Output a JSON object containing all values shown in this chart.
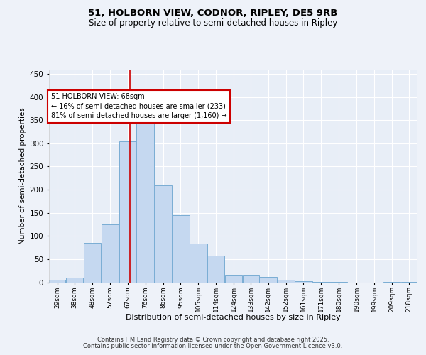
{
  "title1": "51, HOLBORN VIEW, CODNOR, RIPLEY, DE5 9RB",
  "title2": "Size of property relative to semi-detached houses in Ripley",
  "xlabel": "Distribution of semi-detached houses by size in Ripley",
  "ylabel": "Number of semi-detached properties",
  "bin_labels": [
    "29sqm",
    "38sqm",
    "48sqm",
    "57sqm",
    "67sqm",
    "76sqm",
    "86sqm",
    "95sqm",
    "105sqm",
    "114sqm",
    "124sqm",
    "133sqm",
    "142sqm",
    "152sqm",
    "161sqm",
    "171sqm",
    "180sqm",
    "190sqm",
    "199sqm",
    "209sqm",
    "218sqm"
  ],
  "bin_edges": [
    24.5,
    33.5,
    43,
    52.5,
    62,
    71.5,
    81,
    90.5,
    100,
    109.5,
    119,
    128.5,
    137.5,
    147,
    156.5,
    166,
    175.5,
    185,
    194.5,
    204,
    213.5,
    222.5
  ],
  "values": [
    5,
    10,
    85,
    125,
    305,
    350,
    210,
    145,
    83,
    58,
    15,
    15,
    12,
    5,
    3,
    1,
    1,
    0,
    0,
    1,
    1
  ],
  "bar_color": "#c5d8f0",
  "bar_edge_color": "#7aadd4",
  "property_size": 68,
  "marker_line_color": "#cc0000",
  "annotation_line1": "51 HOLBORN VIEW: 68sqm",
  "annotation_line2": "← 16% of semi-detached houses are smaller (233)",
  "annotation_line3": "81% of semi-detached houses are larger (1,160) →",
  "annotation_box_color": "#ffffff",
  "annotation_box_edge": "#cc0000",
  "ylim": [
    0,
    460
  ],
  "yticks": [
    0,
    50,
    100,
    150,
    200,
    250,
    300,
    350,
    400,
    450
  ],
  "bg_color": "#e8eef7",
  "grid_color": "#ffffff",
  "fig_bg_color": "#eef2f9",
  "footer_line1": "Contains HM Land Registry data © Crown copyright and database right 2025.",
  "footer_line2": "Contains public sector information licensed under the Open Government Licence v3.0."
}
